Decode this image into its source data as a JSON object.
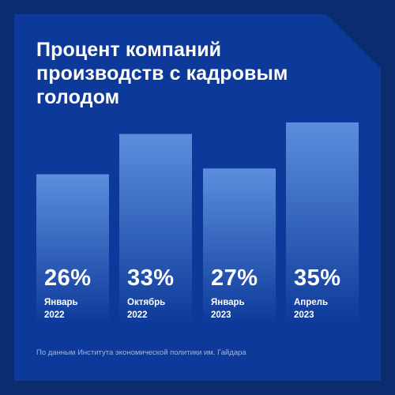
{
  "title": "Процент компаний производств с кадровым голодом",
  "source": "По данным Института экономической политики им. Гайдара",
  "colors": {
    "background": "#0b2d70",
    "panel": "#0d3a9a",
    "bar_top": "#5b8fdd",
    "bar_bottom": "#0d3a9a",
    "text": "#ffffff",
    "source_text": "#9fb4e0"
  },
  "chart_data": {
    "type": "bar",
    "title": "Процент компаний производств с кадровым голодом",
    "categories": [
      {
        "line1": "Январь",
        "line2": "2022"
      },
      {
        "line1": "Октябрь",
        "line2": "2022"
      },
      {
        "line1": "Январь",
        "line2": "2023"
      },
      {
        "line1": "Апрель",
        "line2": "2023"
      }
    ],
    "values": [
      26,
      33,
      27,
      35
    ],
    "value_labels": [
      "26%",
      "33%",
      "27%",
      "35%"
    ],
    "unit": "%",
    "grid": false,
    "legend": "none"
  }
}
